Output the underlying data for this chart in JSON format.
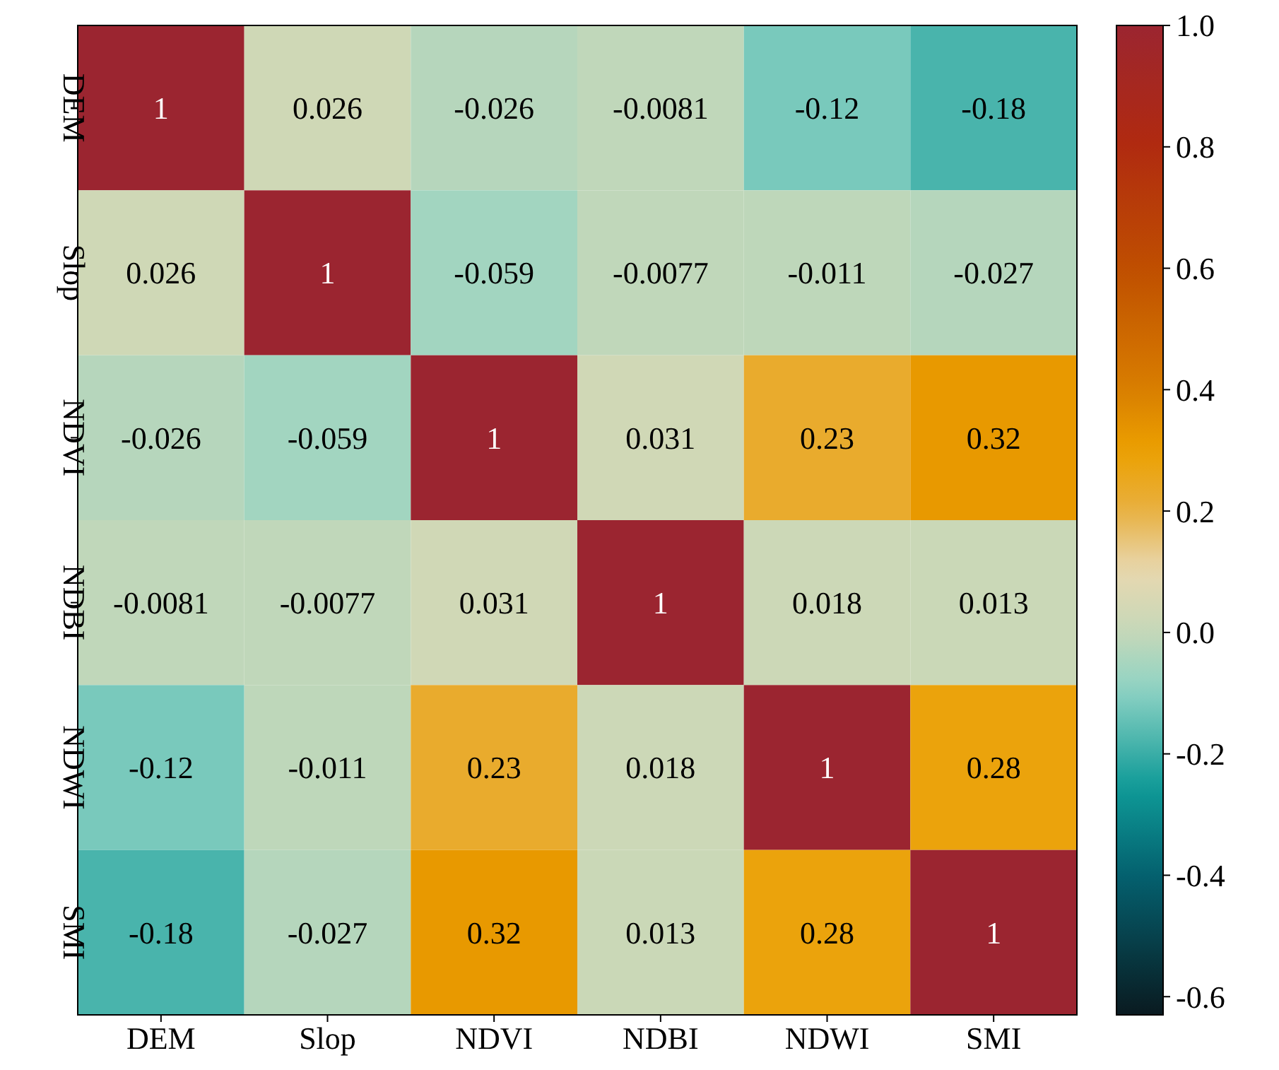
{
  "chart_data": {
    "type": "heatmap",
    "categories": [
      "DEM",
      "Slop",
      "NDVI",
      "NDBI",
      "NDWI",
      "SMI"
    ],
    "y_categories": [
      "DEM",
      "Slop",
      "NDVI",
      "NDBI",
      "NDWI",
      "SMI"
    ],
    "cells": [
      [
        1,
        0.026,
        -0.026,
        -0.0081,
        -0.12,
        -0.18
      ],
      [
        0.026,
        1,
        -0.059,
        -0.0077,
        -0.011,
        -0.027
      ],
      [
        -0.026,
        -0.059,
        1,
        0.031,
        0.23,
        0.32
      ],
      [
        -0.0081,
        -0.0077,
        0.031,
        1,
        0.018,
        0.013
      ],
      [
        -0.12,
        -0.011,
        0.23,
        0.018,
        1,
        0.28
      ],
      [
        -0.18,
        -0.027,
        0.32,
        0.013,
        0.28,
        1
      ]
    ],
    "data_labels": true,
    "clim": [
      -0.63,
      1.0
    ],
    "cticks": [
      {
        "value": -0.6,
        "label": "-0.6"
      },
      {
        "value": -0.4,
        "label": "-0.4"
      },
      {
        "value": -0.2,
        "label": "-0.2"
      },
      {
        "value": 0,
        "label": "0.0"
      },
      {
        "value": 0.2,
        "label": "0.2"
      },
      {
        "value": 0.4,
        "label": "0.4"
      },
      {
        "value": 0.6,
        "label": "0.6"
      },
      {
        "value": 0.8,
        "label": "0.8"
      },
      {
        "value": 1,
        "label": "1.0"
      }
    ]
  }
}
